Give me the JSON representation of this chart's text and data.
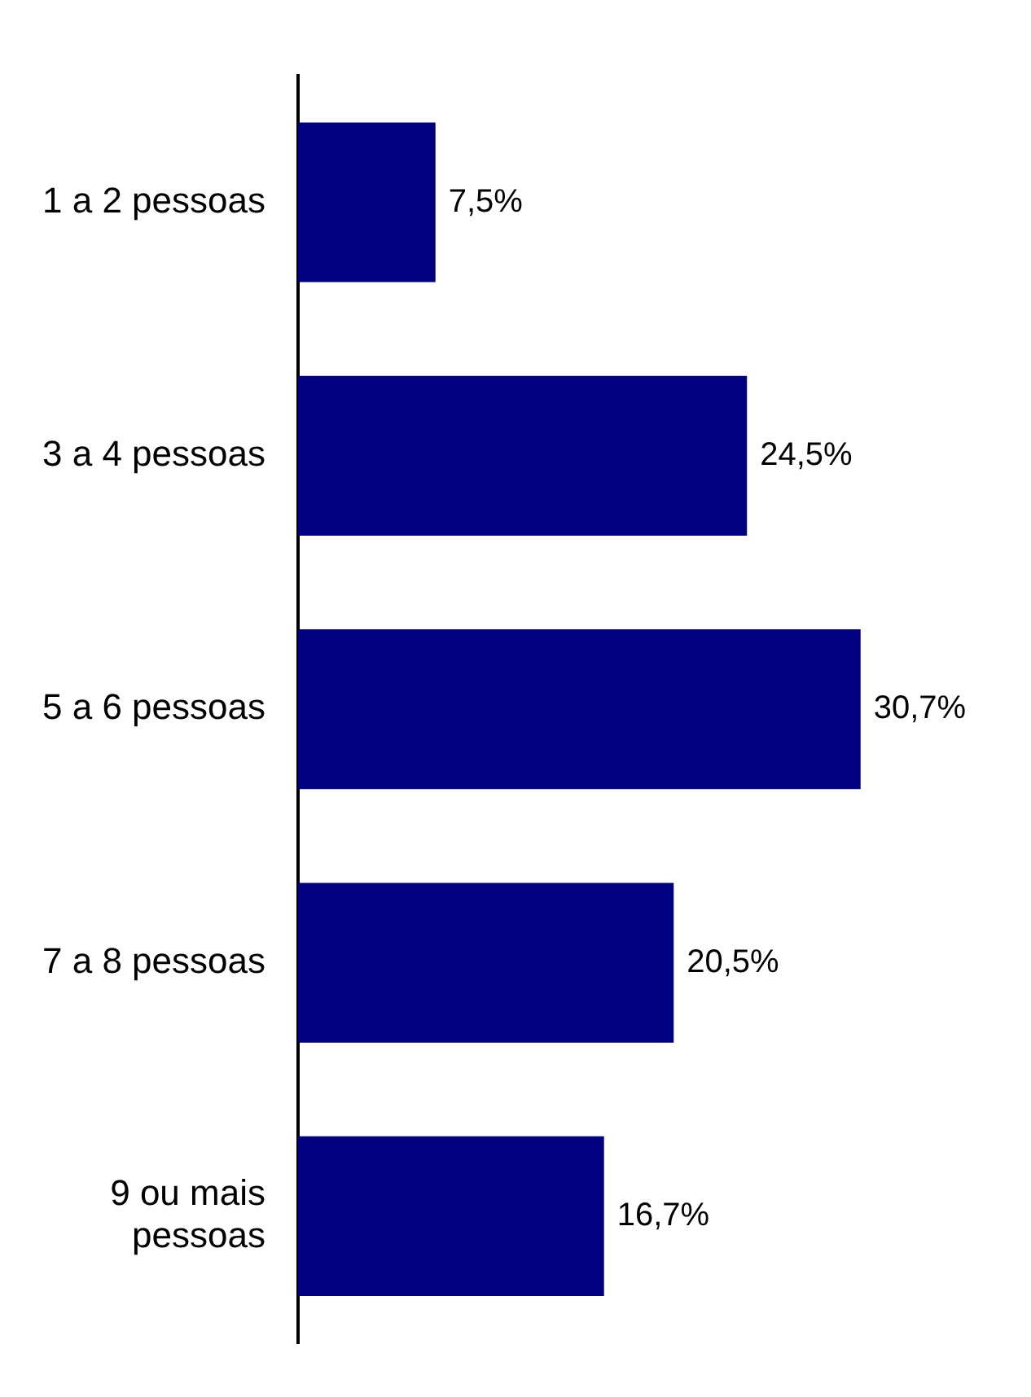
{
  "chart_data": {
    "type": "bar",
    "orientation": "horizontal",
    "categories": [
      "1 a 2 pessoas",
      "3 a 4 pessoas",
      "5 a 6 pessoas",
      "7 a 8 pessoas",
      "9 ou mais pessoas"
    ],
    "values": [
      7.5,
      24.5,
      30.7,
      20.5,
      16.7
    ],
    "value_labels": [
      "7,5%",
      "24,5%",
      "30,7%",
      "20,5%",
      "16,7%"
    ],
    "color": "#000080"
  }
}
